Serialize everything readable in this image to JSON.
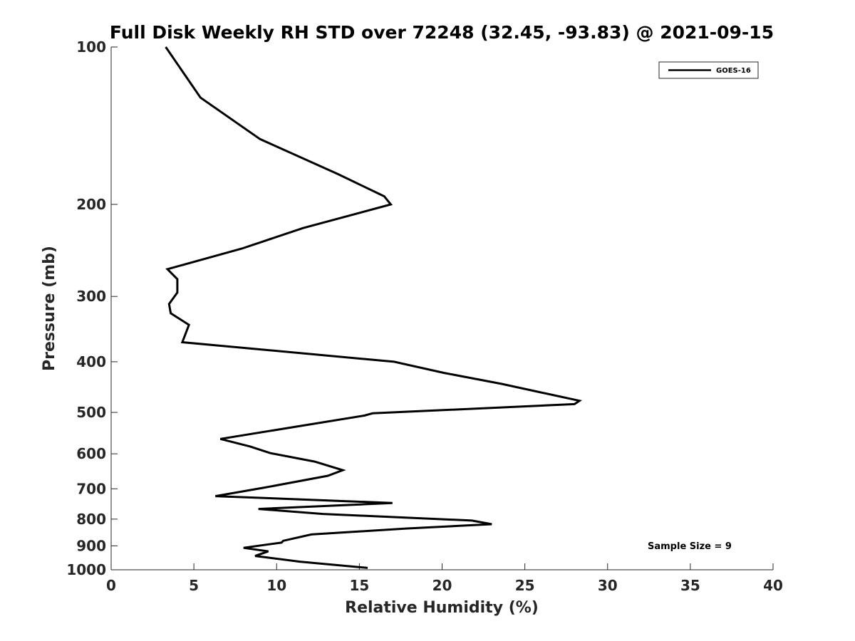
{
  "chart_data": {
    "type": "line",
    "title": "Full Disk Weekly RH STD over 72248 (32.45, -93.83) @ 2021-09-15",
    "xlabel": "Relative Humidity (%)",
    "ylabel": "Pressure (mb)",
    "xlim": [
      0,
      40
    ],
    "ylim": [
      100,
      1000
    ],
    "yscale": "log",
    "y_reversed": true,
    "xticks": [
      "0",
      "5",
      "10",
      "15",
      "20",
      "25",
      "30",
      "35",
      "40"
    ],
    "yticks": [
      "100",
      "200",
      "300",
      "400",
      "500",
      "600",
      "700",
      "800",
      "900",
      "1000"
    ],
    "grid": false,
    "legend_position": "top-right",
    "series": [
      {
        "name": "GOES-16",
        "color": "#000000",
        "x": [
          3.3,
          5.4,
          9.0,
          13.7,
          16.5,
          16.9,
          11.6,
          7.9,
          3.4,
          4.0,
          4.0,
          3.5,
          3.6,
          4.7,
          4.3,
          17.1,
          20.1,
          23.6,
          28.3,
          28.0,
          15.8,
          15.3,
          10.3,
          6.6,
          8.4,
          9.6,
          12.3,
          14.0,
          13.1,
          9.2,
          6.3,
          17.0,
          8.9,
          12.8,
          21.8,
          23.0,
          17.8,
          12.1,
          10.4,
          10.3,
          8.0,
          9.5,
          8.7,
          11.4,
          15.5
        ],
        "y": [
          100,
          125,
          150,
          175,
          193,
          200,
          222,
          243,
          266,
          278,
          295,
          310,
          323,
          340,
          367,
          400,
          420,
          441,
          475,
          482,
          502,
          507,
          538,
          562,
          581,
          598,
          621,
          645,
          661,
          697,
          723,
          745,
          765,
          782,
          805,
          818,
          834,
          856,
          880,
          887,
          908,
          922,
          941,
          965,
          992
        ]
      }
    ],
    "annotations": [
      "Sample Size = 9"
    ]
  }
}
